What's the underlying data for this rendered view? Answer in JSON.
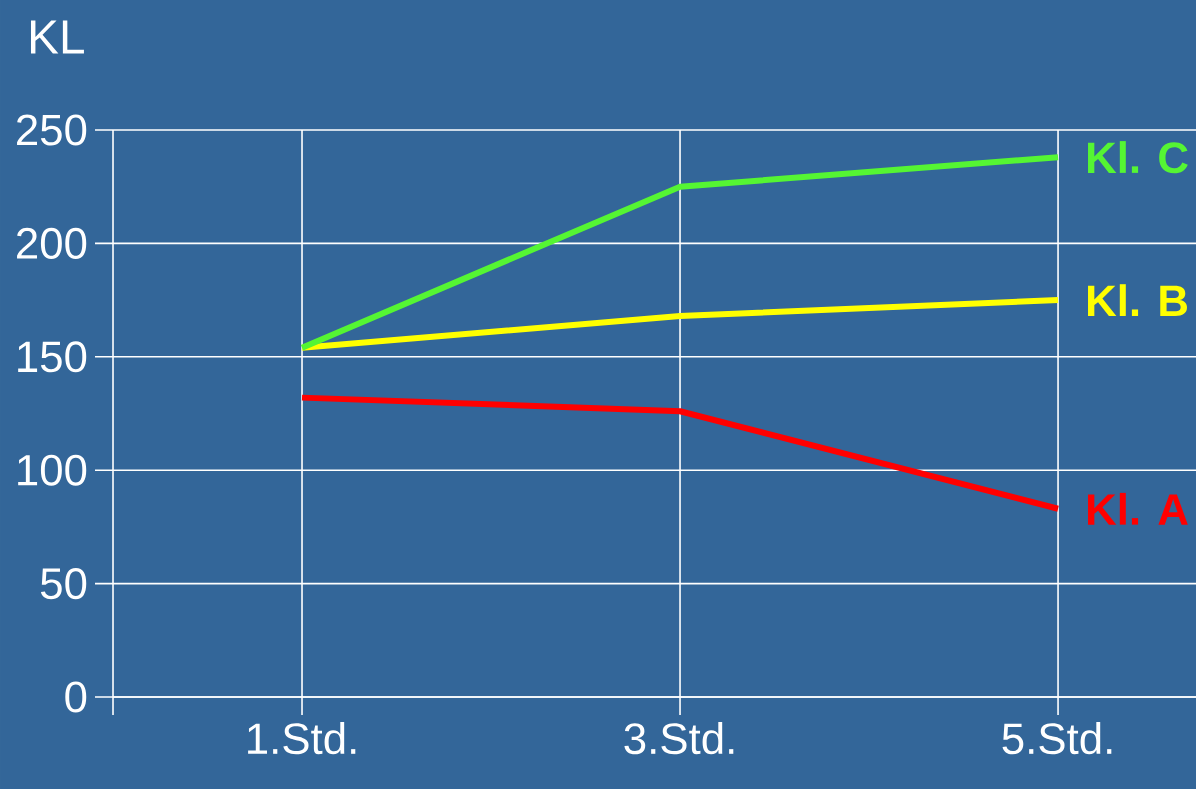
{
  "chart_data": {
    "type": "line",
    "ylabel": "KL",
    "categories": [
      "1.Std.",
      "3.Std.",
      "5.Std."
    ],
    "ylim": [
      0,
      250
    ],
    "yticks": [
      0,
      50,
      100,
      150,
      200,
      250
    ],
    "grid": true,
    "line_style": "solid",
    "marker": "none",
    "series": [
      {
        "name": "Kl. A",
        "color": "#ff0000",
        "values": [
          132,
          126,
          83
        ]
      },
      {
        "name": "Kl. B",
        "color": "#ffff00",
        "values": [
          154,
          168,
          175
        ]
      },
      {
        "name": "Kl. C",
        "color": "#55f533",
        "values": [
          154,
          225,
          238
        ]
      }
    ]
  }
}
